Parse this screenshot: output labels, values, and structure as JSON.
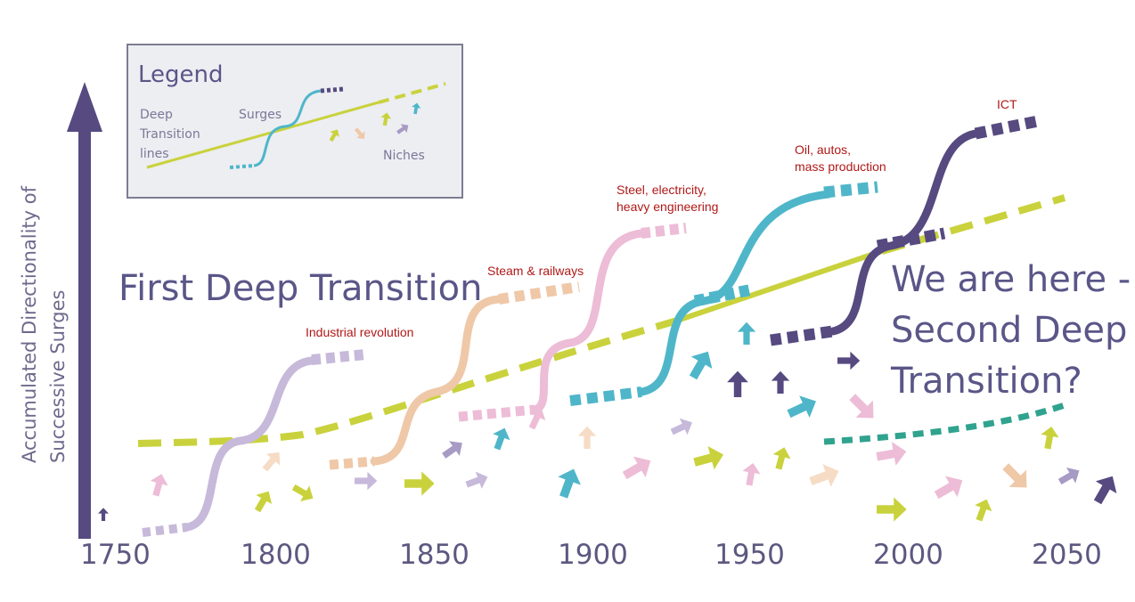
{
  "yaxis": {
    "label_line1": "Accumulated Directionality of",
    "label_line2": "Successive Surges"
  },
  "xaxis": {
    "ticks": [
      "1750",
      "1800",
      "1850",
      "1900",
      "1950",
      "2000",
      "2050"
    ]
  },
  "legend": {
    "title": "Legend",
    "deep_line1": "Deep",
    "deep_line2": "Transition",
    "deep_line3": "lines",
    "surges": "Surges",
    "niches": "Niches"
  },
  "headings": {
    "first": "First Deep Transition",
    "here_line1": "We are here -",
    "here_line2": "Second Deep",
    "here_line3": "Transition?"
  },
  "eras": {
    "industrial": "Industrial revolution",
    "steam": "Steam & railways",
    "steel_line1": "Steel, electricity,",
    "steel_line2": "heavy engineering",
    "oil_line1": "Oil, autos,",
    "oil_line2": "mass production",
    "ict": "ICT"
  },
  "colors": {
    "axis": "#564a80",
    "deep_line": "#c9d23c",
    "second_deep_line": "#2fa38e",
    "surge_1": "#c7b9da",
    "surge_2": "#efc8a8",
    "surge_3": "#edbcd6",
    "surge_4": "#4fb6c9",
    "surge_5": "#564a80",
    "era_label": "#b01818",
    "heading": "#5a5688"
  }
}
